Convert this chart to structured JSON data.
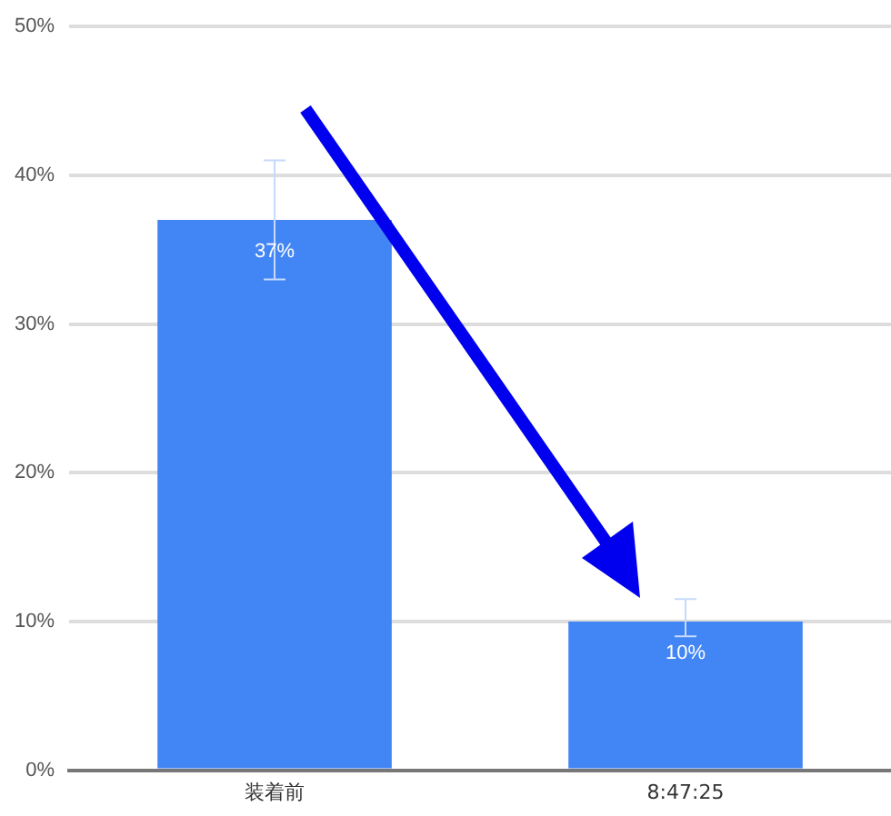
{
  "chart_data": {
    "type": "bar",
    "categories": [
      "装着前",
      "8:47:25"
    ],
    "values": [
      37,
      10
    ],
    "color": "#4285f4",
    "errors": [
      [
        33,
        41
      ],
      [
        9,
        11.5
      ]
    ],
    "value_labels": [
      "37%",
      "10%"
    ],
    "ylim": [
      0,
      50
    ],
    "yticks": [
      {
        "value": 0,
        "label": "0%"
      },
      {
        "value": 10,
        "label": "10%"
      },
      {
        "value": 20,
        "label": "20%"
      },
      {
        "value": 30,
        "label": "30%"
      },
      {
        "value": 40,
        "label": "40%"
      },
      {
        "value": 50,
        "label": "50%"
      }
    ],
    "grid": "y"
  }
}
